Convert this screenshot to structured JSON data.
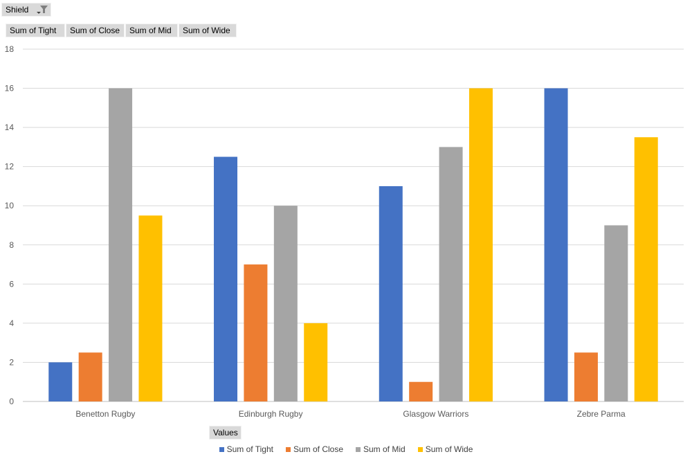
{
  "filter": {
    "label": "Shield",
    "icon": "filter-dropdown-icon"
  },
  "value_fields": [
    "Sum of Tight",
    "Sum of Close",
    "Sum of Mid",
    "Sum of Wide"
  ],
  "axis_field": {
    "label": "Values"
  },
  "colors": {
    "Sum of Tight": "#4472c4",
    "Sum of Close": "#ed7d31",
    "Sum of Mid": "#a5a5a5",
    "Sum of Wide": "#ffc000"
  },
  "chart_data": {
    "type": "bar",
    "categories": [
      "Benetton Rugby",
      "Edinburgh Rugby",
      "Glasgow Warriors",
      "Zebre Parma"
    ],
    "series": [
      {
        "name": "Sum of Tight",
        "values": [
          2,
          12.5,
          11,
          16
        ]
      },
      {
        "name": "Sum of Close",
        "values": [
          2.5,
          7,
          1,
          2.5
        ]
      },
      {
        "name": "Sum of Mid",
        "values": [
          16,
          10,
          13,
          9
        ]
      },
      {
        "name": "Sum of Wide",
        "values": [
          9.5,
          4,
          16,
          13.5
        ]
      }
    ],
    "ylim": [
      0,
      18
    ],
    "yticks": [
      0,
      2,
      4,
      6,
      8,
      10,
      12,
      14,
      16,
      18
    ],
    "grid": true,
    "legend": "bottom"
  }
}
